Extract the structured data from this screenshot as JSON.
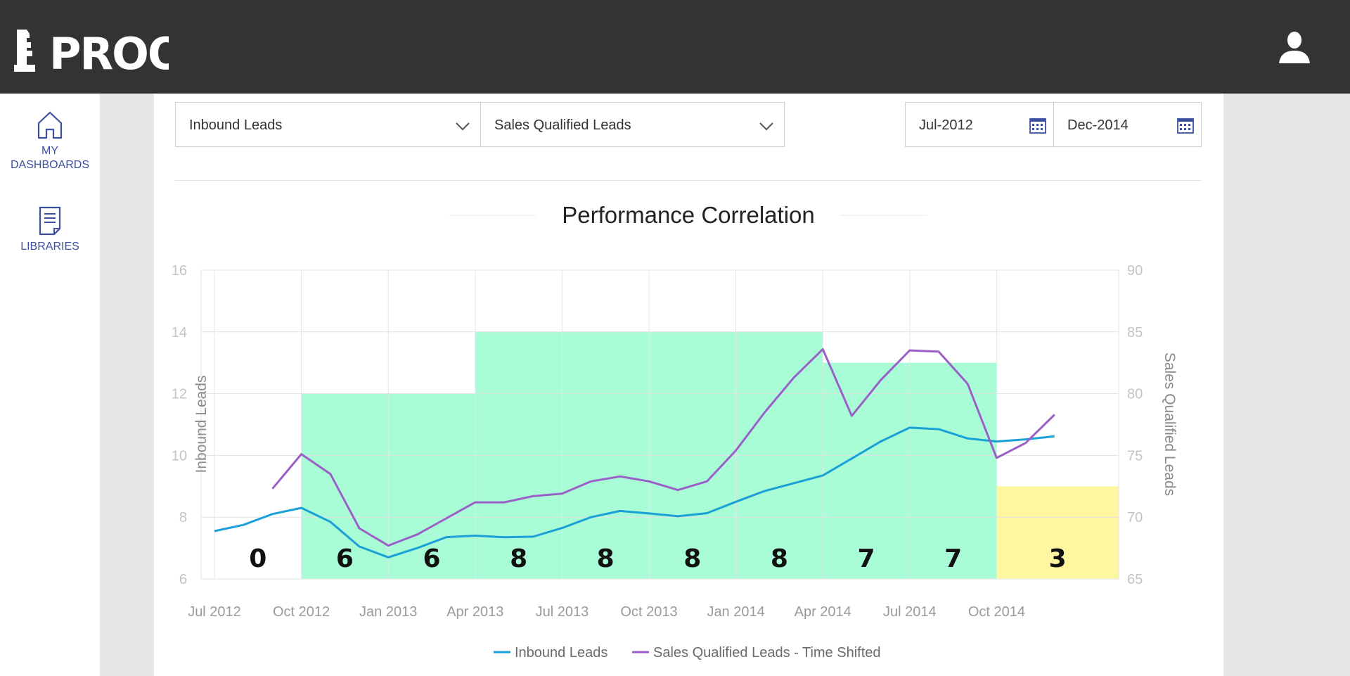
{
  "app": {
    "brand": "PROOF"
  },
  "sidebar": {
    "items": [
      {
        "label_line1": "MY",
        "label_line2": "DASHBOARDS",
        "icon": "home-icon"
      },
      {
        "label": "LIBRARIES",
        "icon": "document-icon"
      }
    ]
  },
  "filters": {
    "metric1": "Inbound Leads",
    "metric2": "Sales Qualified Leads",
    "start_date": "Jul-2012",
    "end_date": "Dec-2014"
  },
  "colors": {
    "topbar": "#333333",
    "accent": "#3d4fa0",
    "series1": "#1a9fd6",
    "series2": "#9b5fc8",
    "band_green": "#a8fdd7",
    "band_yellow": "#fef6a0"
  },
  "chart_data": {
    "type": "line",
    "title": "Performance Correlation",
    "ylabel": "Inbound Leads",
    "y2label": "Sales Qualified Leads",
    "ylim": [
      6,
      16
    ],
    "y2lim": [
      65,
      90
    ],
    "yticks": [
      "6",
      "8",
      "10",
      "12",
      "14",
      "16"
    ],
    "y2ticks": [
      "65",
      "70",
      "75",
      "80",
      "85",
      "90"
    ],
    "x_tick_labels": [
      "Jul 2012",
      "Oct 2012",
      "Jan 2013",
      "Apr 2013",
      "Jul 2013",
      "Oct 2013",
      "Jan 2014",
      "Apr 2014",
      "Jul 2014",
      "Oct 2014"
    ],
    "x": [
      "Jul 2012",
      "Aug 2012",
      "Sep 2012",
      "Oct 2012",
      "Nov 2012",
      "Dec 2012",
      "Jan 2013",
      "Feb 2013",
      "Mar 2013",
      "Apr 2013",
      "May 2013",
      "Jun 2013",
      "Jul 2013",
      "Aug 2013",
      "Sep 2013",
      "Oct 2013",
      "Nov 2013",
      "Dec 2013",
      "Jan 2014",
      "Feb 2014",
      "Mar 2014",
      "Apr 2014",
      "May 2014",
      "Jun 2014",
      "Jul 2014",
      "Aug 2014",
      "Sep 2014",
      "Oct 2014",
      "Nov 2014",
      "Dec 2014"
    ],
    "series": [
      {
        "name": "Inbound Leads",
        "axis": "left",
        "values": [
          7.55,
          7.75,
          8.1,
          8.3,
          7.85,
          7.05,
          6.7,
          7.0,
          7.35,
          7.4,
          7.35,
          7.37,
          7.65,
          8.0,
          8.2,
          8.12,
          8.03,
          8.13,
          8.5,
          8.85,
          9.1,
          9.35,
          9.9,
          10.45,
          10.9,
          10.85,
          10.55,
          10.45,
          10.52,
          10.62
        ]
      },
      {
        "name": "Sales Qualified Leads - Time Shifted",
        "axis": "right",
        "values": [
          null,
          null,
          72.3,
          75.1,
          73.5,
          69.1,
          67.7,
          68.6,
          69.9,
          71.2,
          71.2,
          71.7,
          71.9,
          72.9,
          73.3,
          72.9,
          72.2,
          72.9,
          75.4,
          78.5,
          81.3,
          83.6,
          78.2,
          81.1,
          83.5,
          83.4,
          80.8,
          74.8,
          76.0,
          78.3
        ]
      }
    ],
    "bands": [
      {
        "from": "Jul 2012",
        "to": "Oct 2012",
        "value": 0,
        "label": "0",
        "color": "none"
      },
      {
        "from": "Oct 2012",
        "to": "Jan 2013",
        "value": 12,
        "label": "6",
        "color": "green"
      },
      {
        "from": "Jan 2013",
        "to": "Apr 2013",
        "value": 12,
        "label": "6",
        "color": "green"
      },
      {
        "from": "Apr 2013",
        "to": "Jul 2013",
        "value": 14,
        "label": "8",
        "color": "green"
      },
      {
        "from": "Jul 2013",
        "to": "Oct 2013",
        "value": 14,
        "label": "8",
        "color": "green"
      },
      {
        "from": "Oct 2013",
        "to": "Jan 2014",
        "value": 14,
        "label": "8",
        "color": "green"
      },
      {
        "from": "Jan 2014",
        "to": "Apr 2014",
        "value": 14,
        "label": "8",
        "color": "green"
      },
      {
        "from": "Apr 2014",
        "to": "Jul 2014",
        "value": 13,
        "label": "7",
        "color": "green"
      },
      {
        "from": "Jul 2014",
        "to": "Oct 2014",
        "value": 13,
        "label": "7",
        "color": "green"
      },
      {
        "from": "Oct 2014",
        "to": "Dec 2014",
        "value": 9,
        "label": "3",
        "color": "yellow"
      }
    ],
    "legend": [
      "Inbound Leads",
      "Sales Qualified Leads - Time Shifted"
    ],
    "legend_position": "bottom",
    "grid": true
  }
}
